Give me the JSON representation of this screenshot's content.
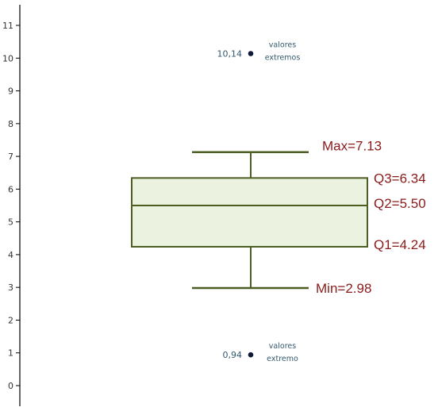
{
  "chart_data": {
    "type": "box",
    "title": "",
    "xlabel": "",
    "ylabel": "",
    "ylim": [
      0,
      11
    ],
    "yticks": [
      "0",
      "1",
      "2",
      "3",
      "4",
      "5",
      "6",
      "7",
      "8",
      "9",
      "10",
      "11"
    ],
    "grid": false,
    "box": {
      "min": 2.98,
      "q1": 4.24,
      "median": 5.5,
      "q3": 6.34,
      "max": 7.13
    },
    "labels": {
      "max": "Max=7.13",
      "q3": "Q3=6.34",
      "q2": "Q2=5.50",
      "q1": "Q1=4.24",
      "min": "Min=2.98"
    },
    "outliers": [
      {
        "value": 10.14,
        "value_label": "10,14",
        "note_lines": [
          "valores",
          "extremos"
        ]
      },
      {
        "value": 0.94,
        "value_label": "0,94",
        "note_lines": [
          "valores",
          "extremo"
        ]
      }
    ],
    "colors": {
      "box_fill": "#ebf2df",
      "box_stroke": "#4d5e23",
      "stat_text": "#8b1a1a",
      "outlier_marker": "#0f1a3a",
      "outlier_value_text": "#33586e",
      "outlier_note_text": "#33586e",
      "axis": "#000000"
    }
  }
}
